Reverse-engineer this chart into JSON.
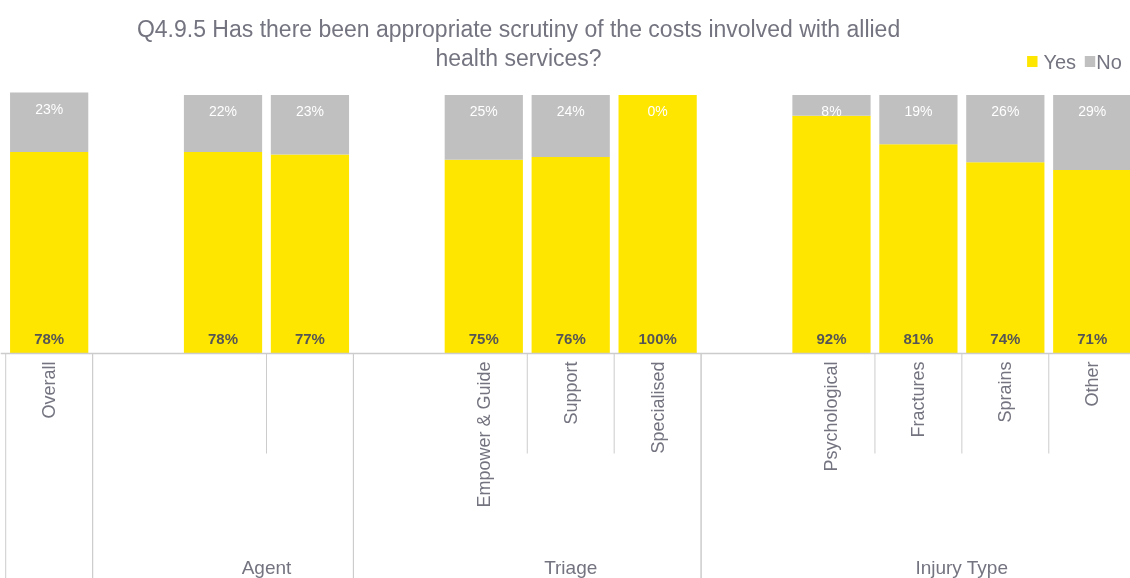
{
  "chart_data": {
    "type": "bar",
    "stacked": true,
    "legend": "top right",
    "grid": false,
    "title": "Q4.9.5 Has there been appropriate scrutiny of the costs involved with allied health services?",
    "categories": [
      "Overall",
      null,
      null,
      null,
      null,
      "Empower & Guide",
      "Support",
      "Specialised",
      null,
      "Psychological",
      "Fractures",
      "Sprains",
      "Other"
    ],
    "series": [
      {
        "name": "Yes",
        "color": "#ffe600",
        "values": [
          78,
          null,
          78,
          77,
          null,
          75,
          76,
          100,
          null,
          92,
          81,
          74,
          71
        ],
        "value_labels": [
          "78%",
          null,
          "78%",
          "77%",
          null,
          "75%",
          "76%",
          "100%",
          null,
          "92%",
          "81%",
          "74%",
          "71%"
        ]
      },
      {
        "name": "No",
        "color": "#c0c0c0",
        "values": [
          23,
          null,
          22,
          23,
          null,
          25,
          24,
          0,
          null,
          8,
          19,
          26,
          29
        ],
        "value_labels": [
          "23%",
          null,
          "22%",
          "23%",
          null,
          "25%",
          "24%",
          "0%",
          null,
          "8%",
          "19%",
          "26%",
          "29%"
        ]
      }
    ],
    "annotations": [
      "Agent",
      "Triage",
      "Injury Type"
    ]
  }
}
